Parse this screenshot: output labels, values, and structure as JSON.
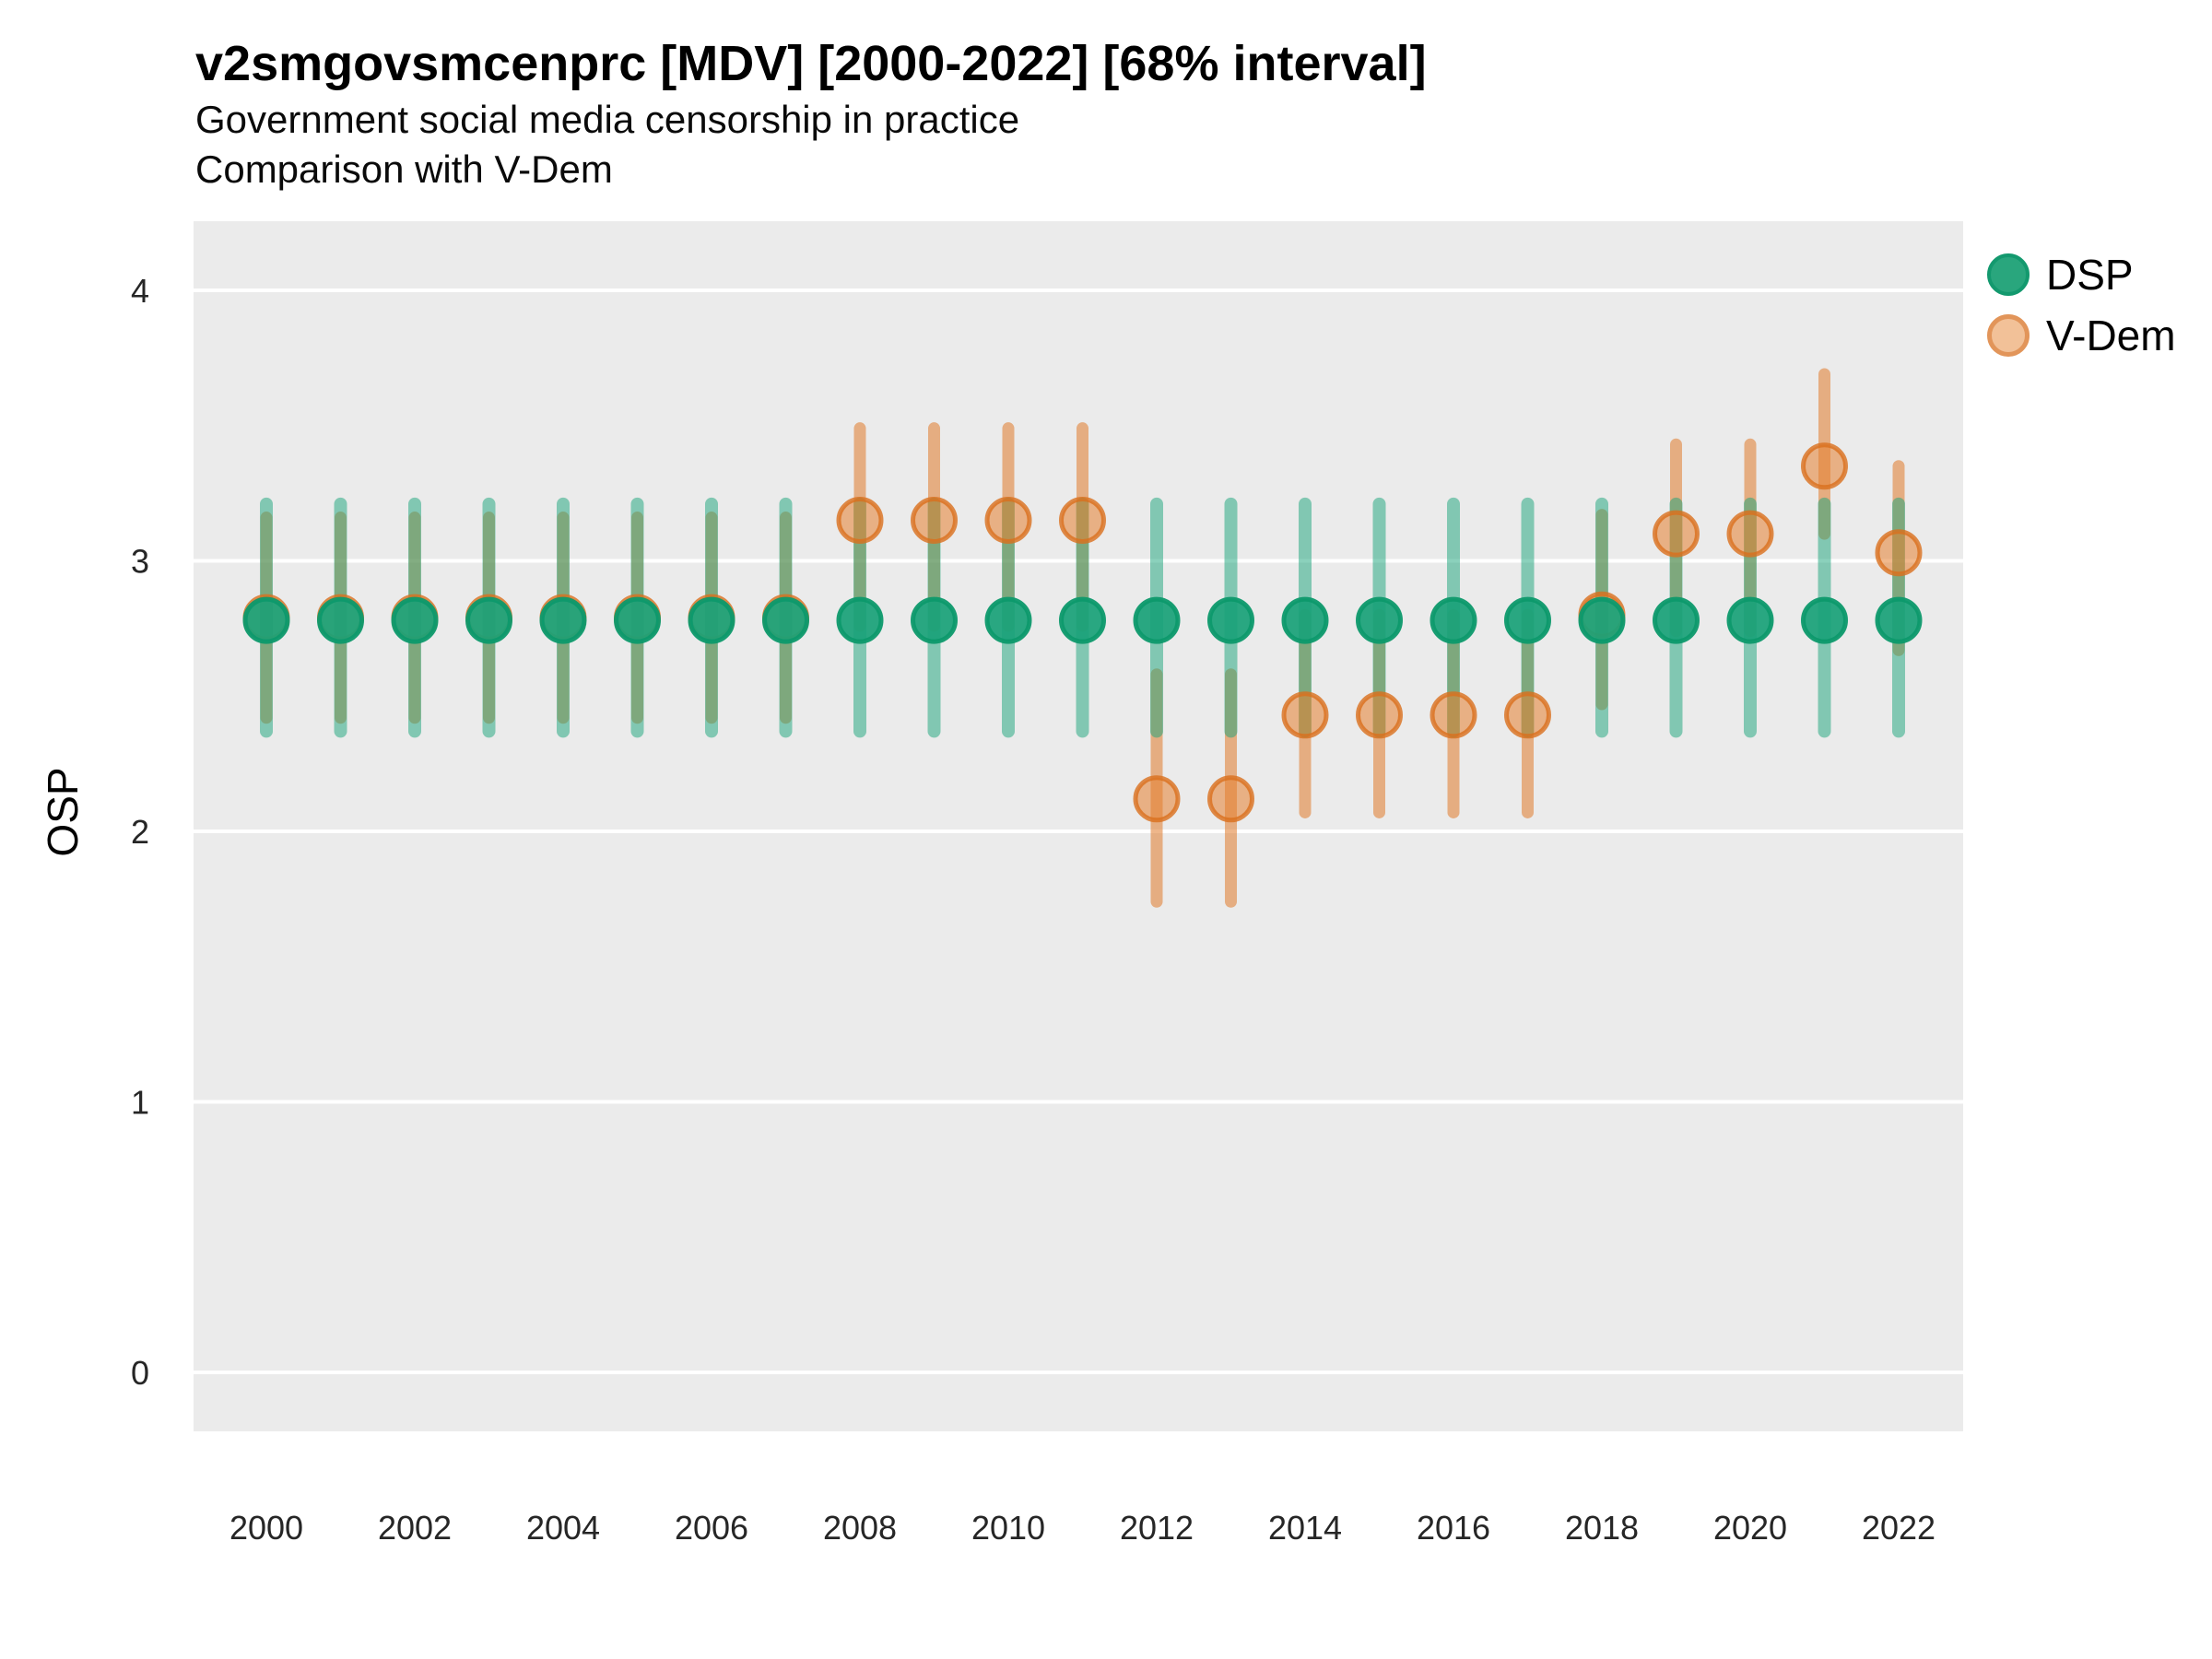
{
  "title": "v2smgovsmcenprc [MDV] [2000-2022] [68% interval]",
  "subtitle1": "Government social media censorship in practice",
  "subtitle2": "Comparison with V-Dem",
  "y_axis": {
    "label": "OSP",
    "ticks": [
      0,
      1,
      2,
      3,
      4
    ]
  },
  "x_axis": {
    "ticks": [
      2000,
      2002,
      2004,
      2006,
      2008,
      2010,
      2012,
      2014,
      2016,
      2018,
      2020,
      2022
    ]
  },
  "legend": {
    "items": [
      {
        "label": "DSP",
        "color": "#29a67d"
      },
      {
        "label": "V-Dem",
        "color": "#e2955a"
      }
    ]
  },
  "colors": {
    "panel_background": "#ebebeb",
    "gridline": "#ffffff",
    "dsp_bar": "rgba(23,163,121,0.50)",
    "vdem_bar": "rgba(224,122,41,0.55)",
    "dsp_point_fill": "rgba(26,161,120,0.93)",
    "dsp_point_stroke": "rgba(13,153,108,0.95)",
    "vdem_point_fill": "rgba(229,128,48,0.55)",
    "vdem_point_stroke": "rgba(217,111,29,0.80)",
    "tick_label": "#262626"
  },
  "chart_data": {
    "type": "scatter",
    "title": "v2smgovsmcenprc [MDV] [2000-2022] [68% interval]",
    "subtitle": "Government social media censorship in practice — Comparison with V-Dem",
    "xlabel": "",
    "ylabel": "OSP",
    "ylim": [
      -0.23,
      4.26
    ],
    "x": [
      2000,
      2001,
      2002,
      2003,
      2004,
      2005,
      2006,
      2007,
      2008,
      2009,
      2010,
      2011,
      2012,
      2013,
      2014,
      2015,
      2016,
      2017,
      2018,
      2019,
      2020,
      2021,
      2022
    ],
    "interval": "68%",
    "series": [
      {
        "name": "DSP",
        "points": [
          2.78,
          2.78,
          2.78,
          2.78,
          2.78,
          2.78,
          2.78,
          2.78,
          2.78,
          2.78,
          2.78,
          2.78,
          2.78,
          2.78,
          2.78,
          2.78,
          2.78,
          2.78,
          2.78,
          2.78,
          2.78,
          2.78,
          2.78
        ],
        "lo": [
          2.37,
          2.37,
          2.37,
          2.37,
          2.37,
          2.37,
          2.37,
          2.37,
          2.37,
          2.37,
          2.37,
          2.37,
          2.37,
          2.37,
          2.37,
          2.37,
          2.37,
          2.37,
          2.37,
          2.37,
          2.37,
          2.37,
          2.37
        ],
        "hi": [
          3.21,
          3.21,
          3.21,
          3.21,
          3.21,
          3.21,
          3.21,
          3.21,
          3.21,
          3.21,
          3.21,
          3.21,
          3.21,
          3.21,
          3.21,
          3.21,
          3.21,
          3.21,
          3.21,
          3.21,
          3.21,
          3.21,
          3.21
        ]
      },
      {
        "name": "V-Dem",
        "points": [
          2.79,
          2.79,
          2.79,
          2.79,
          2.79,
          2.79,
          2.79,
          2.79,
          3.15,
          3.15,
          3.15,
          3.15,
          2.12,
          2.12,
          2.43,
          2.43,
          2.43,
          2.43,
          2.8,
          3.1,
          3.1,
          3.35,
          3.03
        ],
        "lo": [
          2.42,
          2.42,
          2.42,
          2.42,
          2.42,
          2.42,
          2.42,
          2.42,
          2.76,
          2.76,
          2.76,
          2.76,
          1.74,
          1.74,
          2.07,
          2.07,
          2.07,
          2.07,
          2.47,
          2.74,
          2.74,
          3.1,
          2.67
        ],
        "hi": [
          3.16,
          3.16,
          3.16,
          3.16,
          3.16,
          3.16,
          3.16,
          3.16,
          3.49,
          3.49,
          3.49,
          3.49,
          2.58,
          2.58,
          2.8,
          2.8,
          2.8,
          2.8,
          3.17,
          3.43,
          3.43,
          3.69,
          3.35
        ]
      }
    ],
    "legend_position": "right",
    "grid": "major-horizontal"
  }
}
